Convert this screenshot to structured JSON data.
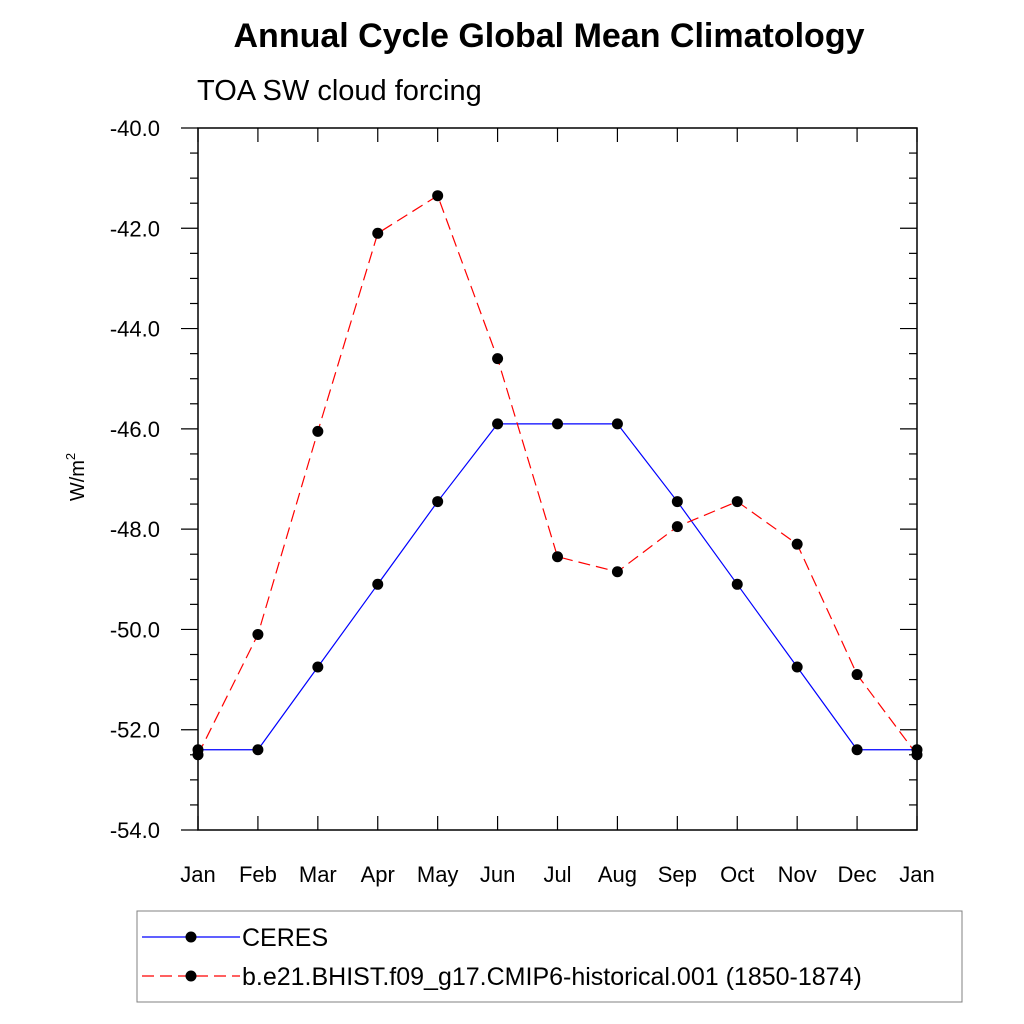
{
  "chart_data": {
    "type": "line",
    "title": "Annual Cycle Global Mean Climatology",
    "subtitle": "TOA SW cloud forcing",
    "ylabel": "W/m",
    "ylabel_superscript": "2",
    "ylim": [
      -54.0,
      -40.0
    ],
    "categories": [
      "Jan",
      "Feb",
      "Mar",
      "Apr",
      "May",
      "Jun",
      "Jul",
      "Aug",
      "Sep",
      "Oct",
      "Nov",
      "Dec",
      "Jan"
    ],
    "y_ticks": [
      "-40.0",
      "-42.0",
      "-44.0",
      "-46.0",
      "-48.0",
      "-50.0",
      "-52.0",
      "-54.0"
    ],
    "legend_position": "bottom",
    "series": [
      {
        "name": "CERES",
        "color": "#0000ff",
        "line_style": "solid",
        "marker": "filled-circle",
        "values": [
          -52.4,
          -52.4,
          -50.75,
          -49.1,
          -47.45,
          -45.9,
          -45.9,
          -45.9,
          -47.45,
          -49.1,
          -50.75,
          -52.4,
          -52.4
        ]
      },
      {
        "name": "b.e21.BHIST.f09_g17.CMIP6-historical.001 (1850-1874)",
        "color": "#ff0000",
        "line_style": "dashed",
        "marker": "filled-circle",
        "values": [
          -52.5,
          -50.1,
          -46.05,
          -42.1,
          -41.35,
          -44.6,
          -48.55,
          -48.85,
          -47.95,
          -47.45,
          -48.3,
          -50.9,
          -52.5
        ]
      }
    ]
  }
}
